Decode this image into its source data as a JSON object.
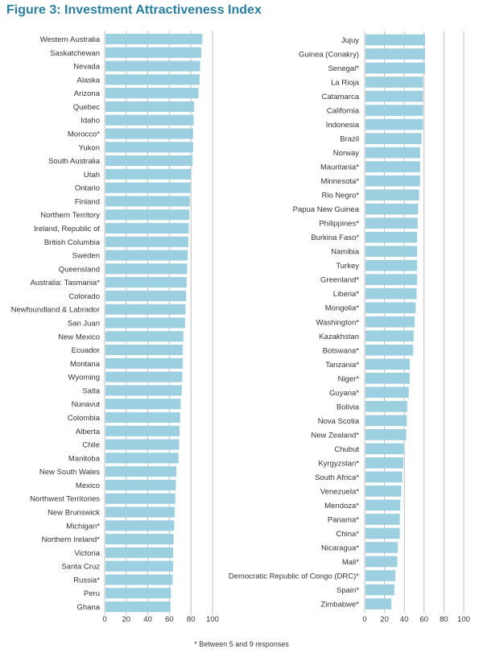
{
  "title": "Figure 3: Investment Attractiveness Index",
  "footnote": "* Between 5 and 9 responses",
  "colors": {
    "bar": "#9ccfdf",
    "title": "#2a7ea0",
    "grid": "#b0b0b0",
    "text": "#333333"
  },
  "chart_data": [
    {
      "type": "bar",
      "orientation": "horizontal",
      "xlim": [
        0,
        100
      ],
      "xticks": [
        0,
        20,
        40,
        60,
        80,
        100
      ],
      "grid": true,
      "categories": [
        "Western Australia",
        "Saskatchewan",
        "Nevada",
        "Alaska",
        "Arizona",
        "Quebec",
        "Idaho",
        "Morocco*",
        "Yukon",
        "South Australia",
        "Utah",
        "Ontario",
        "Finland",
        "Northern Territory",
        "Ireland, Republic of",
        "British Columbia",
        "Sweden",
        "Queensland",
        "Australia: Tasmania*",
        "Colorado",
        "Newfoundland & Labrador",
        "San Juan",
        "New Mexico",
        "Ecuador",
        "Montana",
        "Wyoming",
        "Salta",
        "Nunavut",
        "Colombia",
        "Alberta",
        "Chile",
        "Manitoba",
        "New South Wales",
        "Mexico",
        "Northwest Territories",
        "New Brunswick",
        "Michigan*",
        "Northern Ireland*",
        "Victoria",
        "Santa Cruz",
        "Russia*",
        "Peru",
        "Ghana"
      ],
      "values": [
        90.5,
        89.5,
        88.5,
        88,
        87,
        83,
        82.5,
        82,
        82,
        81.5,
        80,
        79.5,
        79,
        78.5,
        78,
        77.5,
        77,
        76.5,
        76,
        75.5,
        75,
        74.5,
        73,
        72.5,
        72.5,
        72,
        71.5,
        70.5,
        70,
        69.5,
        69,
        68.5,
        66.5,
        66,
        65.5,
        65,
        64.5,
        64,
        63.5,
        63.5,
        63,
        61.5,
        61
      ]
    },
    {
      "type": "bar",
      "orientation": "horizontal",
      "xlim": [
        0,
        100
      ],
      "xticks": [
        0,
        20,
        40,
        60,
        80,
        100
      ],
      "grid": true,
      "categories": [
        "Jujuy",
        "Guinea (Conakry)",
        "Senegal*",
        "La Rioja",
        "Catamarca",
        "California",
        "Indonesia",
        "Brazil",
        "Norway",
        "Mauritania*",
        "Minnesota*",
        "Rio Negro*",
        "Papua New Guinea",
        "Philippines*",
        "Burkina Faso*",
        "Namibia",
        "Turkey",
        "Greenland*",
        "Liberia*",
        "Mongolia*",
        "Washington*",
        "Kazakhstan",
        "Botswana*",
        "Tanzania*",
        "Niger*",
        "Guyana*",
        "Bolivia",
        "Nova Scotia",
        "New Zealand*",
        "Chubut",
        "Kyrgyzstan*",
        "South Africa*",
        "Venezuela*",
        "Mendoza*",
        "Panama*",
        "China*",
        "Nicaragua*",
        "Mali*",
        "Democratic Republic of Congo (DRC)*",
        "Spain*",
        "Zimbabwe*"
      ],
      "values": [
        61,
        61,
        61,
        59,
        59,
        59,
        59,
        57.5,
        56,
        56,
        56,
        55,
        54,
        53.5,
        53,
        53,
        53,
        53,
        52.5,
        51.5,
        50.5,
        49.5,
        49,
        45.5,
        45.5,
        44.5,
        43,
        42.5,
        42,
        39.5,
        39,
        38,
        37,
        36,
        35.5,
        35.5,
        33.5,
        33,
        31,
        30,
        27
      ]
    }
  ]
}
